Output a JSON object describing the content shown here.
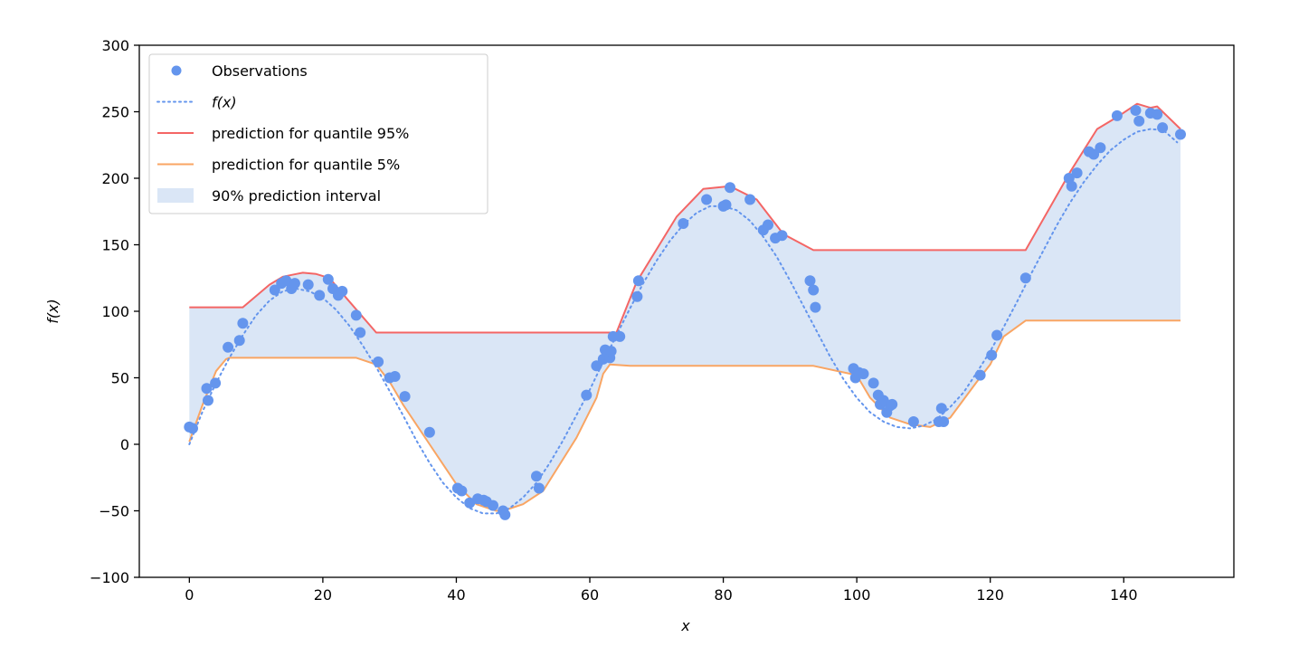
{
  "chart_data": {
    "type": "scatter",
    "title": "",
    "xlabel": "x",
    "ylabel": "f(x)",
    "xlim": [
      -7.5,
      156.5
    ],
    "ylim": [
      -100,
      300
    ],
    "xticks": [
      0,
      20,
      40,
      60,
      80,
      100,
      120,
      140
    ],
    "xtick_labels": [
      "0",
      "20",
      "40",
      "60",
      "80",
      "100",
      "120",
      "140"
    ],
    "yticks": [
      -100,
      -50,
      0,
      50,
      100,
      150,
      200,
      250,
      300
    ],
    "ytick_labels": [
      "−100",
      "−50",
      "0",
      "50",
      "100",
      "150",
      "200",
      "250",
      "300"
    ],
    "grid": false,
    "legend": {
      "placement": "top-left",
      "entries": [
        {
          "label": "Observations",
          "kind": "marker",
          "color": "#6495ed"
        },
        {
          "label": "f(x)",
          "kind": "dotted-line",
          "color": "#6495ed"
        },
        {
          "label": "prediction for quantile 95%",
          "kind": "line",
          "color": "#f46665"
        },
        {
          "label": "prediction for quantile 5%",
          "kind": "line",
          "color": "#f9a563"
        },
        {
          "label": "90% prediction interval",
          "kind": "patch",
          "color": "#dae6f6"
        }
      ]
    },
    "series": [
      {
        "name": "Observations",
        "type": "scatter",
        "color": "#6495ed",
        "x": [
          0,
          0.5,
          2.6,
          2.8,
          3.9,
          5.8,
          7.5,
          8.0,
          12.8,
          13.8,
          14.5,
          15.3,
          15.8,
          17.8,
          19.5,
          20.8,
          21.5,
          22.3,
          22.9,
          25.0,
          25.6,
          28.3,
          30.0,
          30.8,
          32.3,
          36.0,
          40.2,
          40.8,
          42.0,
          43.2,
          44.1,
          44.5,
          45.5,
          47.0,
          47.3,
          52.0,
          52.4,
          59.5,
          61.0,
          62.0,
          62.3,
          62.6,
          63.0,
          63.2,
          63.5,
          64.5,
          67.1,
          67.3,
          74.0,
          77.5,
          80.0,
          80.4,
          81.0,
          84.0,
          86.0,
          86.7,
          87.8,
          88.8,
          93.0,
          93.5,
          93.8,
          99.5,
          99.8,
          100.3,
          101.0,
          102.5,
          103.2,
          103.5,
          104.0,
          104.5,
          105.0,
          105.3,
          108.5,
          112.3,
          112.7,
          113.0,
          118.5,
          120.2,
          121.0,
          125.3,
          131.8,
          132.2,
          133.0,
          134.8,
          135.5,
          136.5,
          139.0,
          141.8,
          142.3,
          144.0,
          145.0,
          145.8,
          148.5
        ],
        "y": [
          13,
          12,
          42,
          33,
          46,
          73,
          78,
          91,
          116,
          121,
          123,
          117,
          121,
          120,
          112,
          124,
          117,
          112,
          115,
          97,
          84,
          62,
          50,
          51,
          36,
          9,
          -33,
          -35,
          -44,
          -41,
          -42,
          -43,
          -46,
          -50,
          -53,
          -24,
          -33,
          37,
          59,
          64,
          71,
          67,
          65,
          70,
          81,
          81,
          111,
          123,
          166,
          184,
          179,
          180,
          193,
          184,
          161,
          165,
          155,
          157,
          123,
          116,
          103,
          57,
          50,
          54,
          53,
          46,
          37,
          30,
          33,
          24,
          29,
          30,
          17,
          17,
          27,
          17,
          52,
          67,
          82,
          125,
          200,
          194,
          204,
          220,
          218,
          223,
          247,
          251,
          243,
          249,
          248,
          238,
          233
        ]
      },
      {
        "name": "f(x)",
        "type": "line",
        "style": "dotted",
        "color": "#6495ed",
        "x": [
          0,
          2,
          4,
          6,
          8,
          10,
          12,
          14,
          16,
          18,
          20,
          22,
          24,
          26,
          28,
          30,
          32,
          34,
          36,
          38,
          40,
          42,
          44,
          46,
          48,
          50,
          52,
          54,
          56,
          58,
          60,
          62,
          64,
          66,
          68,
          70,
          72,
          74,
          76,
          78,
          80,
          82,
          84,
          86,
          88,
          90,
          92,
          94,
          96,
          98,
          100,
          102,
          104,
          106,
          108,
          110,
          112,
          114,
          116,
          118,
          120,
          122,
          124,
          126,
          128,
          130,
          132,
          134,
          136,
          138,
          140,
          142,
          144,
          146,
          148
        ],
        "y": [
          0,
          25,
          46,
          65,
          82,
          97,
          108,
          115,
          117,
          115,
          110,
          101,
          89,
          74,
          58,
          40,
          22,
          3,
          -14,
          -29,
          -40,
          -48,
          -52,
          -52,
          -48,
          -40,
          -29,
          -14,
          3,
          22,
          41,
          62,
          82,
          102,
          121,
          138,
          153,
          165,
          174,
          179,
          179,
          176,
          168,
          156,
          141,
          123,
          104,
          85,
          66,
          49,
          35,
          24,
          17,
          13,
          12,
          14,
          19,
          28,
          39,
          54,
          70,
          88,
          107,
          127,
          146,
          165,
          182,
          197,
          210,
          221,
          229,
          235,
          237,
          236,
          227
        ]
      },
      {
        "name": "prediction for quantile 95%",
        "type": "line",
        "color": "#f46665",
        "x": [
          0,
          8,
          12,
          14,
          16,
          17,
          19,
          21,
          23,
          28,
          64,
          67,
          73,
          77,
          81,
          85,
          89,
          93.5,
          125.3,
          132,
          136,
          139,
          142,
          144,
          145,
          148.5
        ],
        "y": [
          103,
          103,
          120,
          126,
          128,
          129,
          128,
          125,
          113,
          84,
          84,
          122,
          171,
          192,
          194,
          184,
          158,
          146,
          146,
          205,
          237,
          246,
          256,
          253,
          254,
          237
        ]
      },
      {
        "name": "prediction for quantile 5%",
        "type": "line",
        "color": "#f9a563",
        "x": [
          0,
          2,
          4,
          5.5,
          6,
          7,
          10,
          15,
          20,
          25,
          28,
          30,
          32,
          36,
          40,
          43,
          46,
          47,
          50,
          53,
          58,
          61,
          62,
          63,
          66,
          70,
          80,
          93.5,
          100,
          102,
          105,
          108,
          111,
          114,
          118,
          120,
          122,
          125.3,
          130,
          140,
          148.5
        ],
        "y": [
          2,
          30,
          55,
          64,
          65,
          65,
          65,
          65,
          65,
          65,
          60,
          47,
          30,
          0,
          -30,
          -45,
          -50,
          -50,
          -45,
          -35,
          5,
          35,
          53,
          60,
          59,
          59,
          59,
          59,
          52,
          35,
          20,
          15,
          13,
          20,
          47,
          60,
          81,
          93,
          93,
          93,
          93
        ]
      }
    ]
  }
}
